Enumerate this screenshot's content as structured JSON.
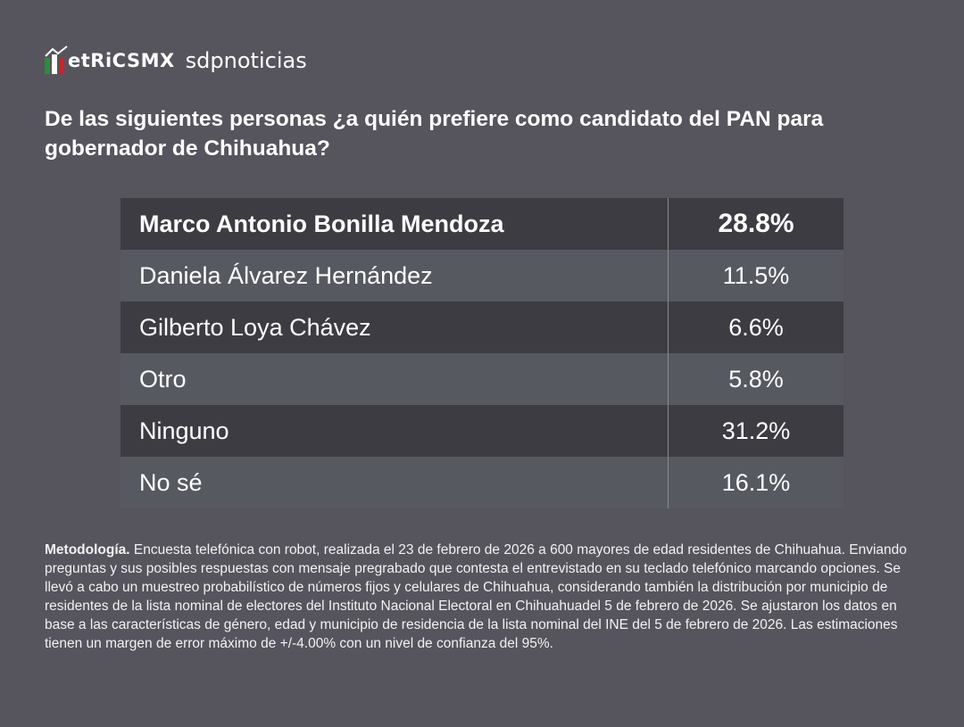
{
  "header": {
    "logo": "etRiCSMX",
    "brand": "sdpnoticias"
  },
  "title": "De las siguientes personas ¿a quién prefiere como candidato del PAN para gobernador de Chihuahua?",
  "table": {
    "rows": [
      [
        "Marco Antonio Bonilla Mendoza",
        "28.8%"
      ],
      [
        "Daniela Álvarez Hernández",
        "11.5%"
      ],
      [
        "Gilberto Loya Chávez",
        "6.6%"
      ],
      [
        "Otro",
        "5.8%"
      ],
      [
        "Ninguno",
        "31.2%"
      ],
      [
        "No sé",
        "16.1%"
      ]
    ]
  },
  "methodology": {
    "label": "Metodología.",
    "text": "Encuesta telefónica con robot, realizada el 23 de febrero de 2026 a 600 mayores de edad residentes de Chihuahua. Enviando preguntas y sus posibles respuestas con mensaje pregrabado que contesta el entrevistado en su teclado telefónico marcando opciones. Se llevó a cabo un muestreo probabilístico de números fijos y celulares de Chihuahua, considerando también la distribución por municipio de residentes de la lista nominal de electores del Instituto Nacional Electoral en Chihuahuadel 5 de febrero de 2026. Se ajustaron los datos en base a las características de género, edad y municipio de residencia de la lista nominal del INE del 5 de febrero de 2026. Las estimaciones tienen un margen de error máximo de +/-4.00% con un nivel de confianza del 95%."
  }
}
